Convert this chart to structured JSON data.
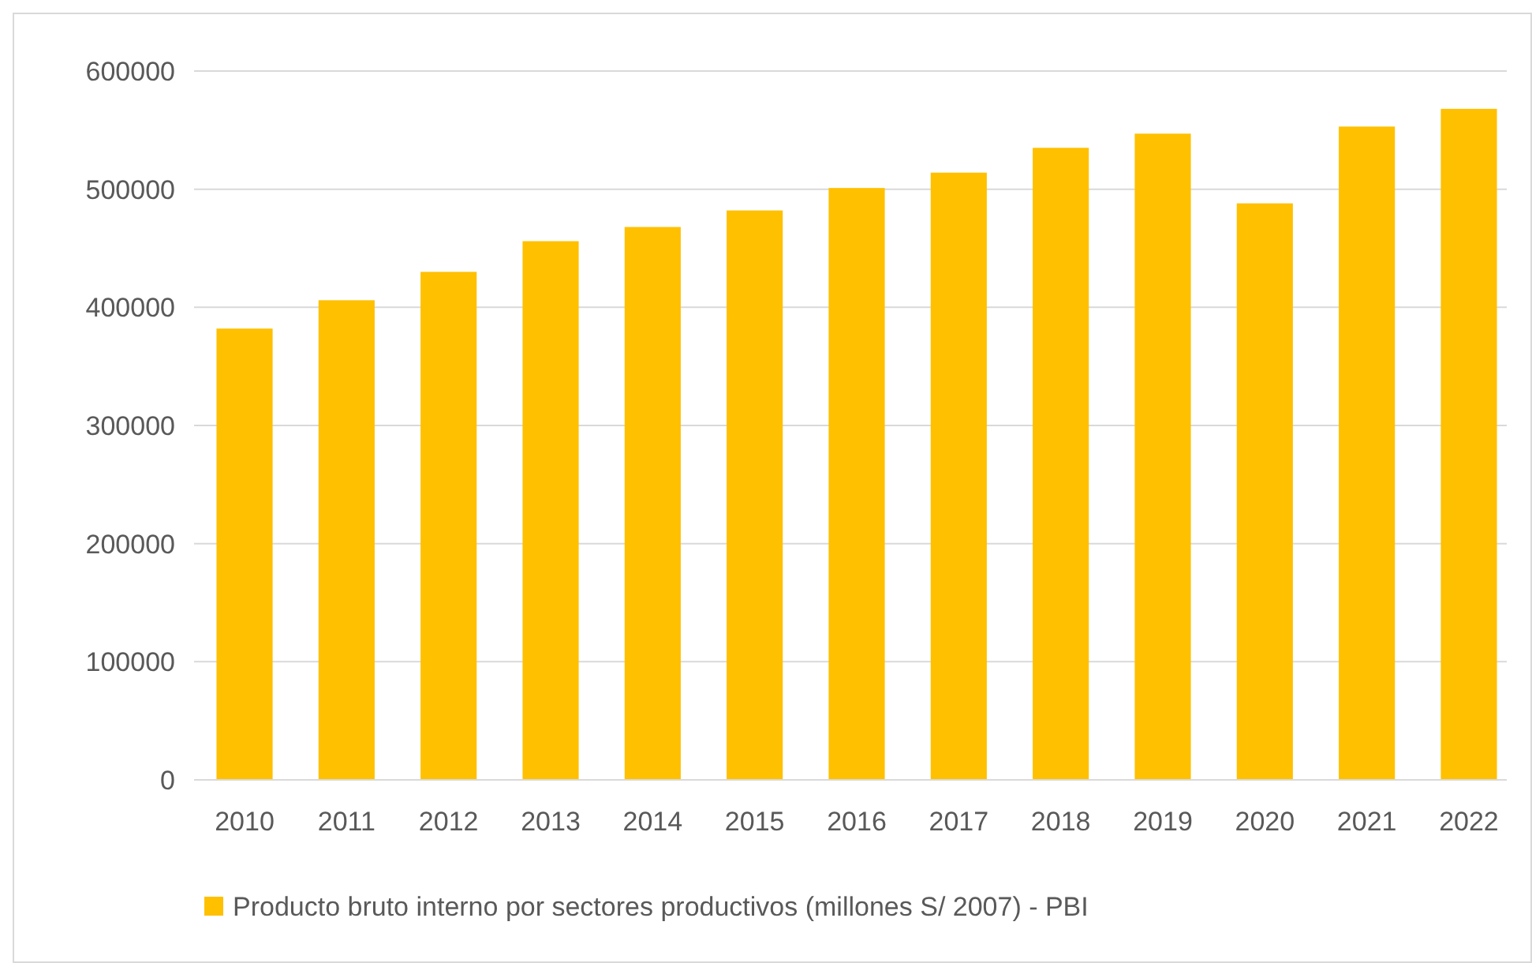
{
  "chart_data": {
    "type": "bar",
    "categories": [
      "2010",
      "2011",
      "2012",
      "2013",
      "2014",
      "2015",
      "2016",
      "2017",
      "2018",
      "2019",
      "2020",
      "2021",
      "2022"
    ],
    "series": [
      {
        "name": "Producto bruto interno por sectores productivos (millones S/ 2007) - PBI",
        "color": "#ffc000",
        "values": [
          382000,
          406000,
          430000,
          456000,
          468000,
          482000,
          501000,
          514000,
          535000,
          547000,
          488000,
          553000,
          568000
        ]
      }
    ],
    "ylim": [
      0,
      600000
    ],
    "yticks": [
      0,
      100000,
      200000,
      300000,
      400000,
      500000,
      600000
    ],
    "grid": "y",
    "legend": "bottom"
  }
}
